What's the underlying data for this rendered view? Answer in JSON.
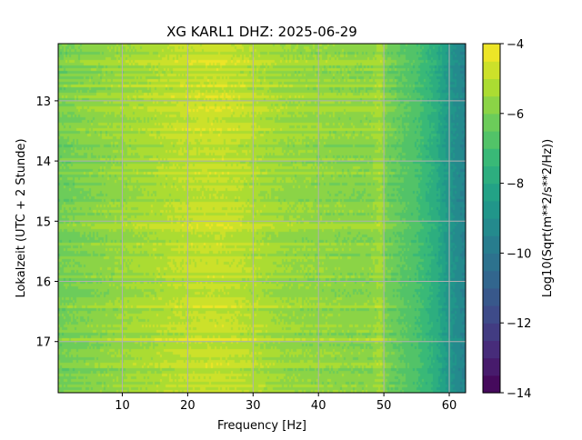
{
  "chart_data": {
    "type": "heatmap",
    "title": "XG KARL1  DHZ: 2025-06-29",
    "xlabel": "Frequency [Hz]",
    "ylabel": "Lokalzeit (UTC + 2 Stunde)",
    "colorbar_label": "Log10(Sqrt(m**2/s**2/Hz))",
    "colormap": "viridis",
    "x_range": [
      0.2,
      62.5
    ],
    "y_range": [
      12.05,
      17.85
    ],
    "y_inverted": true,
    "x_ticks": [
      "10",
      "20",
      "30",
      "40",
      "50",
      "60"
    ],
    "x_tick_values": [
      10,
      20,
      30,
      40,
      50,
      60
    ],
    "y_ticks": [
      "13",
      "14",
      "15",
      "16",
      "17"
    ],
    "y_tick_values": [
      13,
      14,
      15,
      16,
      17
    ],
    "colorbar_range": [
      -14,
      -4
    ],
    "colorbar_ticks": [
      "−4",
      "−6",
      "−8",
      "−10",
      "−12",
      "−14"
    ],
    "colorbar_tick_values": [
      -4,
      -6,
      -8,
      -10,
      -12,
      -14
    ],
    "colorbar_levels": 20,
    "grid": true,
    "frequency_profile": {
      "x": [
        0.5,
        5,
        10,
        15,
        20,
        25,
        30,
        35,
        40,
        45,
        48,
        49.5,
        50.5,
        52,
        55,
        58,
        60,
        62.5
      ],
      "values": [
        -6.2,
        -5.9,
        -5.6,
        -5.3,
        -5.0,
        -4.9,
        -5.2,
        -5.6,
        -5.7,
        -5.8,
        -5.8,
        -5.4,
        -6.2,
        -6.4,
        -6.9,
        -7.8,
        -8.8,
        -9.6
      ]
    }
  }
}
